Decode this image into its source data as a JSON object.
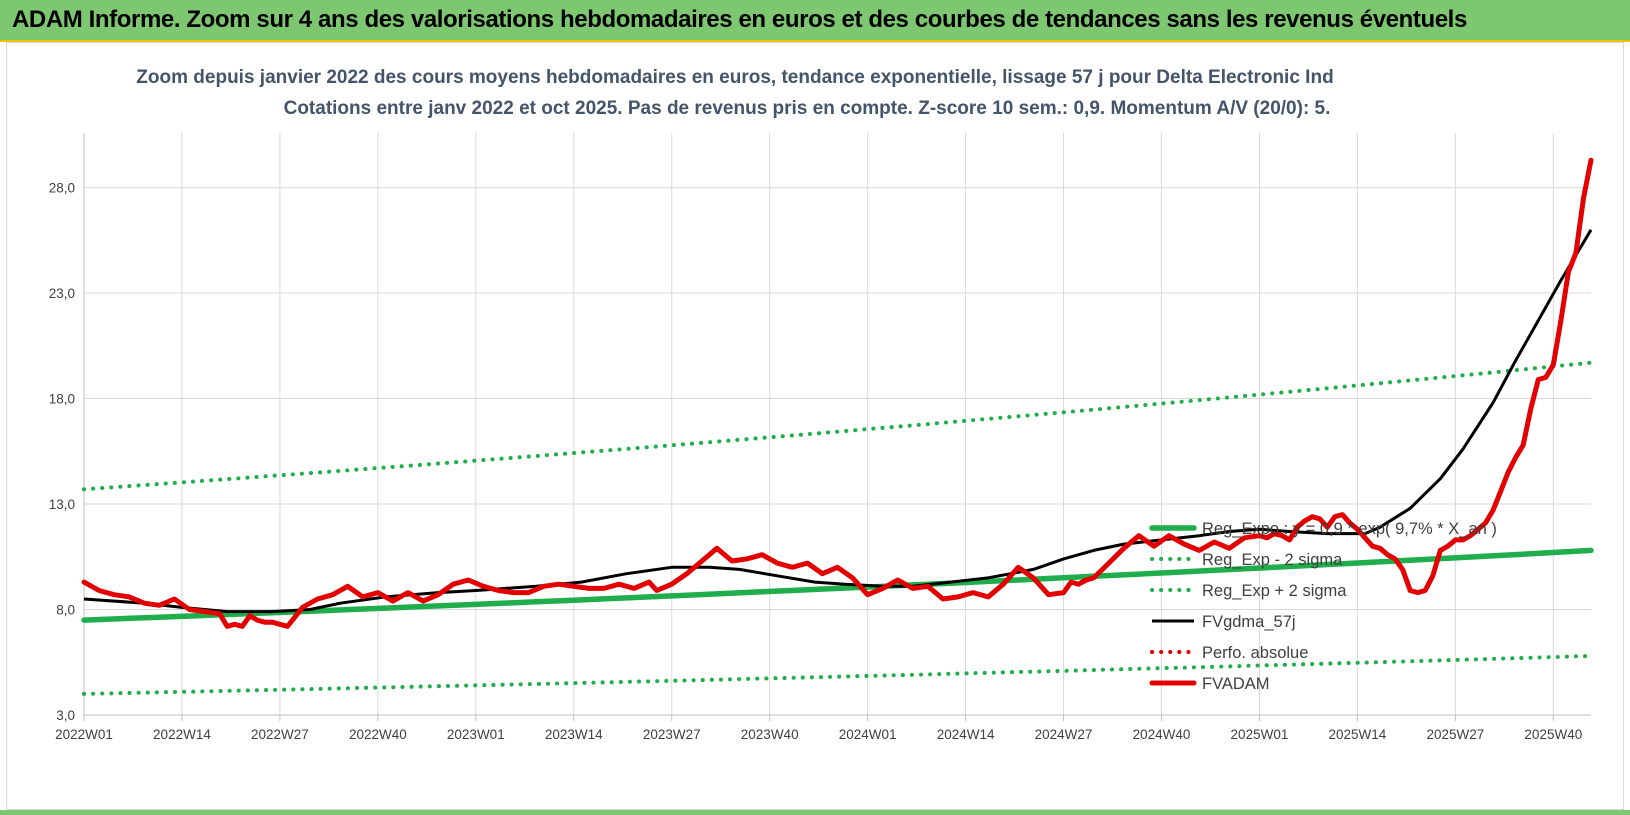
{
  "header": {
    "title": "ADAM Informe. Zoom sur 4 ans des valorisations hebdomadaires en euros et des courbes de tendances sans les revenus éventuels"
  },
  "chart_data": {
    "type": "line",
    "title": "Zoom depuis janvier 2022 des cours moyens hebdomadaires en euros, tendance exponentielle, lissage 57 j pour Delta Electronic Ind",
    "subtitle": "Cotations entre janv 2022 et oct 2025. Pas de revenus pris en compte. Z-score 10 sem.: 0,9. Momentum A/V (20/0): 5.",
    "xlabel": "",
    "ylabel": "",
    "ylim": [
      3,
      30
    ],
    "y_ticks": [
      "3,0",
      "8,0",
      "13,0",
      "18,0",
      "23,0",
      "28,0"
    ],
    "x_ticks": [
      "2022W01",
      "2022W14",
      "2022W27",
      "2022W40",
      "2023W01",
      "2023W14",
      "2023W27",
      "2023W40",
      "2024W01",
      "2024W14",
      "2024W27",
      "2024W40",
      "2025W01",
      "2025W14",
      "2025W27",
      "2025W40"
    ],
    "x_range_weeks": [
      0,
      200
    ],
    "grid": "horizontal and vertical",
    "legend_position": "right",
    "series": [
      {
        "name": "Reg_Expo : y = 0,9 * exp( 9,7% * X_an )",
        "color": "#1fae4b",
        "style": "solid-thick",
        "x": [
          0,
          200
        ],
        "y": [
          7.5,
          10.8
        ],
        "exponential": true
      },
      {
        "name": "Reg_Exp - 2 sigma",
        "color": "#1fae4b",
        "style": "dotted",
        "x": [
          0,
          200
        ],
        "y": [
          4.0,
          5.8
        ],
        "exponential": true
      },
      {
        "name": "Reg_Exp + 2 sigma",
        "color": "#1fae4b",
        "style": "dotted",
        "x": [
          0,
          200
        ],
        "y": [
          13.7,
          19.7
        ],
        "exponential": true
      },
      {
        "name": "FVgdma_57j",
        "color": "#000000",
        "style": "solid",
        "x": [
          0,
          8,
          13,
          19,
          25,
          30,
          34,
          40,
          47,
          52,
          60,
          66,
          72,
          78,
          83,
          87,
          92,
          97,
          101,
          106,
          110,
          115,
          120,
          126,
          130,
          134,
          138,
          143,
          148,
          152,
          156,
          160,
          165,
          170,
          172,
          176,
          180,
          183,
          187,
          190,
          193,
          196,
          200
        ],
        "y": [
          8.5,
          8.3,
          8.1,
          7.9,
          7.9,
          8.0,
          8.3,
          8.6,
          8.8,
          8.9,
          9.1,
          9.3,
          9.7,
          10.0,
          10.0,
          9.9,
          9.6,
          9.3,
          9.2,
          9.1,
          9.1,
          9.3,
          9.5,
          9.9,
          10.4,
          10.8,
          11.1,
          11.3,
          11.5,
          11.7,
          11.8,
          11.7,
          11.6,
          11.6,
          11.9,
          12.8,
          14.2,
          15.6,
          17.8,
          19.8,
          21.7,
          23.6,
          26.0
        ]
      },
      {
        "name": "Perfo. absolue",
        "color": "#e00000",
        "style": "dotted",
        "x": [],
        "y": []
      },
      {
        "name": "FVADAM",
        "color": "#e30000",
        "style": "solid-thick",
        "x": [
          0,
          2,
          4,
          6,
          8,
          10,
          12,
          14,
          16,
          18,
          19,
          20,
          21,
          22,
          23,
          24,
          25,
          26,
          27,
          29,
          31,
          33,
          35,
          37,
          39,
          41,
          43,
          45,
          47,
          49,
          51,
          53,
          55,
          57,
          59,
          61,
          63,
          65,
          67,
          69,
          71,
          73,
          75,
          76,
          78,
          80,
          82,
          84,
          86,
          88,
          90,
          92,
          94,
          96,
          98,
          100,
          102,
          104,
          106,
          108,
          110,
          112,
          114,
          116,
          118,
          120,
          122,
          124,
          126,
          128,
          130,
          131,
          132,
          133,
          134,
          136,
          138,
          140,
          142,
          144,
          146,
          148,
          150,
          152,
          154,
          156,
          157,
          158,
          159,
          160,
          161,
          162,
          163,
          164,
          165,
          166,
          167,
          168,
          169,
          170,
          171,
          172,
          173,
          174,
          175,
          176,
          177,
          178,
          179,
          180,
          181,
          182,
          183,
          184,
          185,
          186,
          187,
          188,
          189,
          190,
          191,
          192,
          193,
          194,
          195,
          196,
          197,
          198,
          199,
          200
        ],
        "y": [
          9.3,
          8.9,
          8.7,
          8.6,
          8.3,
          8.2,
          8.5,
          8.0,
          7.9,
          7.8,
          7.2,
          7.3,
          7.2,
          7.7,
          7.5,
          7.4,
          7.4,
          7.3,
          7.2,
          8.1,
          8.5,
          8.7,
          9.1,
          8.6,
          8.8,
          8.4,
          8.8,
          8.4,
          8.7,
          9.2,
          9.4,
          9.1,
          8.9,
          8.8,
          8.8,
          9.1,
          9.2,
          9.1,
          9.0,
          9.0,
          9.2,
          9.0,
          9.3,
          8.9,
          9.2,
          9.7,
          10.3,
          10.9,
          10.3,
          10.4,
          10.6,
          10.2,
          10.0,
          10.2,
          9.7,
          10.0,
          9.5,
          8.7,
          9.0,
          9.4,
          9.0,
          9.1,
          8.5,
          8.6,
          8.8,
          8.6,
          9.2,
          10.0,
          9.5,
          8.7,
          8.8,
          9.3,
          9.2,
          9.4,
          9.5,
          10.2,
          10.9,
          11.5,
          11.0,
          11.5,
          11.1,
          10.8,
          11.2,
          10.9,
          11.4,
          11.5,
          11.4,
          11.6,
          11.5,
          11.3,
          11.9,
          12.2,
          12.4,
          12.3,
          11.9,
          12.4,
          12.5,
          12.1,
          11.8,
          11.4,
          11.0,
          10.9,
          10.6,
          10.4,
          9.9,
          8.9,
          8.8,
          8.9,
          9.6,
          10.8,
          11.0,
          11.3,
          11.3,
          11.5,
          11.8,
          12.1,
          12.7,
          13.6,
          14.5,
          15.2,
          15.8,
          17.5,
          18.9,
          19.0,
          19.6,
          21.7,
          24.0,
          24.9,
          27.5,
          29.3
        ]
      }
    ]
  }
}
